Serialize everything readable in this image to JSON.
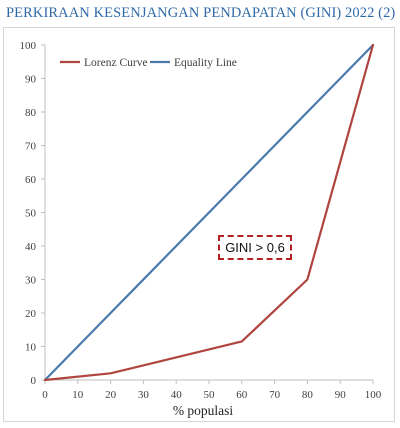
{
  "title": "PERKIRAAN KESENJANGAN PENDAPATAN (GINI) 2022 (2)",
  "annotation": "GINI > 0,6",
  "chart_data": {
    "type": "line",
    "title": "PERKIRAAN KESENJANGAN PENDAPATAN (GINI) 2022 (2)",
    "xlabel": "% populasi",
    "ylabel": "",
    "xlim": [
      0,
      100
    ],
    "ylim": [
      0,
      100
    ],
    "x_ticks": [
      "0",
      "10",
      "20",
      "30",
      "40",
      "50",
      "60",
      "70",
      "80",
      "90",
      "100"
    ],
    "y_ticks": [
      "0",
      "10",
      "20",
      "30",
      "40",
      "50",
      "60",
      "70",
      "80",
      "90",
      "100"
    ],
    "grid": false,
    "legend_position": "top-left",
    "series": [
      {
        "name": "Lorenz Curve",
        "color": "#b0443f",
        "x": [
          0,
          20,
          60,
          80,
          100
        ],
        "y": [
          0,
          2,
          11.5,
          30,
          100
        ]
      },
      {
        "name": "Equality Line",
        "color": "#4a79ad",
        "x": [
          0,
          100
        ],
        "y": [
          0,
          100
        ]
      }
    ]
  }
}
